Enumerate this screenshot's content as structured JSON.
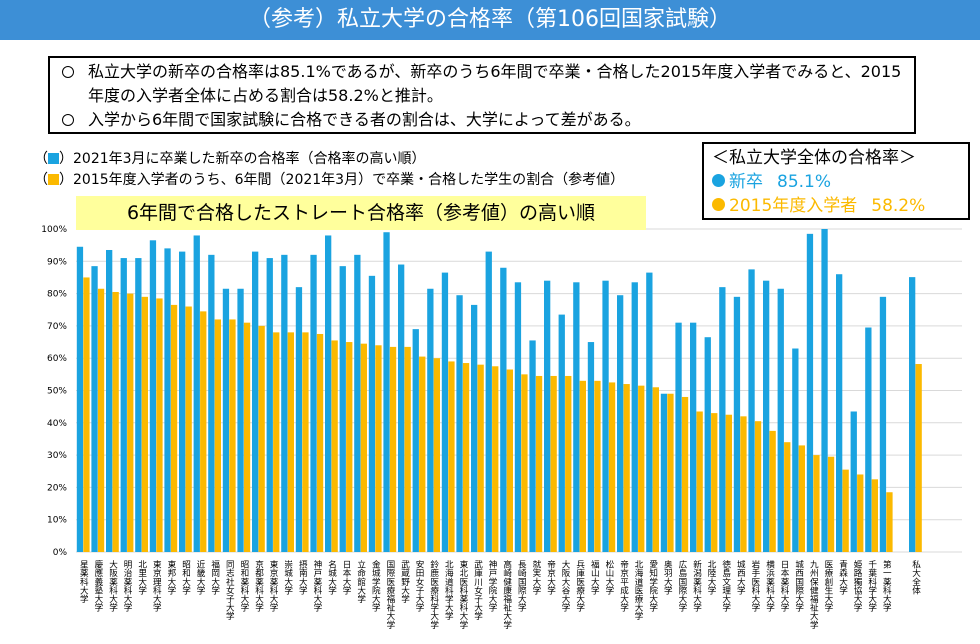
{
  "header": {
    "title": "（参考）私立大学の合格率（第106回国家試験）"
  },
  "notes": [
    "私立大学の新卒の合格率は85.1%であるが、新卒のうち6年間で卒業・合格した2015年度入学者でみると、2015年度の入学者全体に占める割合は58.2%と推計。",
    "入学から6年間で国家試験に合格できる者の割合は、大学によって差がある。"
  ],
  "summary": {
    "title": "＜私立大学全体の合格率＞",
    "items": [
      {
        "label": "新卒",
        "value": "85.1%",
        "color": "#1aa3e0"
      },
      {
        "label": "2015年度入学者",
        "value": "58.2%",
        "color": "#fbb900"
      }
    ]
  },
  "banner": "6年間で合格したストレート合格率（参考値）の高い順",
  "chart_data": {
    "type": "bar",
    "legend_open": "（",
    "legend_close": "）",
    "categories": [
      "星薬科大学",
      "慶應義塾大学",
      "大阪薬科大学",
      "明治薬科大学",
      "北里大学",
      "東京理科大学",
      "東邦大学",
      "昭和大学",
      "近畿大学",
      "福岡大学",
      "同志社女子大学",
      "昭和薬科大学",
      "京都薬科大学",
      "東京薬科大学",
      "崇城大学",
      "摂南大学",
      "神戸薬科大学",
      "名城大学",
      "日本大学",
      "立命館大学",
      "金城学院大学",
      "国際医療福祉大学",
      "武蔵野大学",
      "安田女子大学",
      "鈴鹿医療科学大学",
      "北海道科学大学",
      "東北医科薬科大学",
      "武庫川女子大学",
      "神戸学院大学",
      "高崎健康福祉大学",
      "長崎国際大学",
      "就実大学",
      "帝京大学",
      "大阪大谷大学",
      "兵庫医療大学",
      "福山大学",
      "松山大学",
      "帝京平成大学",
      "北海道医療大学",
      "愛知学院大学",
      "奥羽大学",
      "広島国際大学",
      "新潟薬科大学",
      "北陸大学",
      "徳島文理大学",
      "城西大学",
      "岩手医科大学",
      "横浜薬科大学",
      "日本薬科大学",
      "城西国際大学",
      "九州保健福祉大学",
      "医療創生大学",
      "青森大学",
      "姫路獨協大学",
      "千葉科学大学",
      "第一薬科大学",
      null,
      "私大全体"
    ],
    "series": [
      {
        "name": "2021年3月に卒業した新卒の合格率（合格率の高い順）",
        "color": "#1aa3e0",
        "values": [
          94.5,
          88.5,
          93.5,
          91,
          91,
          96.5,
          94,
          93,
          98,
          92,
          81.5,
          81.5,
          93,
          91,
          92,
          82,
          92,
          98,
          88.5,
          92,
          85.5,
          99,
          89,
          69,
          81.5,
          86.5,
          79.5,
          76.5,
          93,
          88,
          83.5,
          65.5,
          84,
          73.5,
          83.5,
          65,
          84,
          79.5,
          83.5,
          86.5,
          49,
          71,
          71,
          66.5,
          82,
          79,
          87.5,
          84,
          81.5,
          63,
          98.5,
          100,
          86,
          43.5,
          69.5,
          79,
          null,
          85.1
        ]
      },
      {
        "name": "2015年度入学者のうち、6年間（2021年3月）で卒業・合格した学生の割合（参考値）",
        "color": "#fbb900",
        "values": [
          85,
          81.5,
          80.5,
          80,
          79,
          78.5,
          76.5,
          76,
          74.5,
          72,
          72,
          71,
          70,
          68,
          68,
          68,
          67.5,
          65.5,
          65,
          64.5,
          64,
          63.5,
          63.5,
          60.5,
          60,
          59,
          58.5,
          58,
          57.5,
          56.5,
          55,
          54.5,
          54.5,
          54.5,
          53,
          53,
          52.5,
          52,
          51.5,
          51,
          49,
          48,
          43.5,
          43,
          42.5,
          42,
          40.5,
          37.5,
          34,
          33,
          30,
          29.5,
          25.5,
          24,
          22.5,
          18.5,
          null,
          58.2
        ]
      }
    ],
    "ylim": [
      0,
      100
    ],
    "yticks": [
      {
        "value": 0,
        "label": "0%"
      },
      {
        "value": 10,
        "label": "10%"
      },
      {
        "value": 20,
        "label": "20%"
      },
      {
        "value": 30,
        "label": "30%"
      },
      {
        "value": 40,
        "label": "40%"
      },
      {
        "value": 50,
        "label": "50%"
      },
      {
        "value": 60,
        "label": "60%"
      },
      {
        "value": 70,
        "label": "70%"
      },
      {
        "value": 80,
        "label": "80%"
      },
      {
        "value": 90,
        "label": "90%"
      },
      {
        "value": 100,
        "label": "100%"
      }
    ],
    "grid": true
  }
}
